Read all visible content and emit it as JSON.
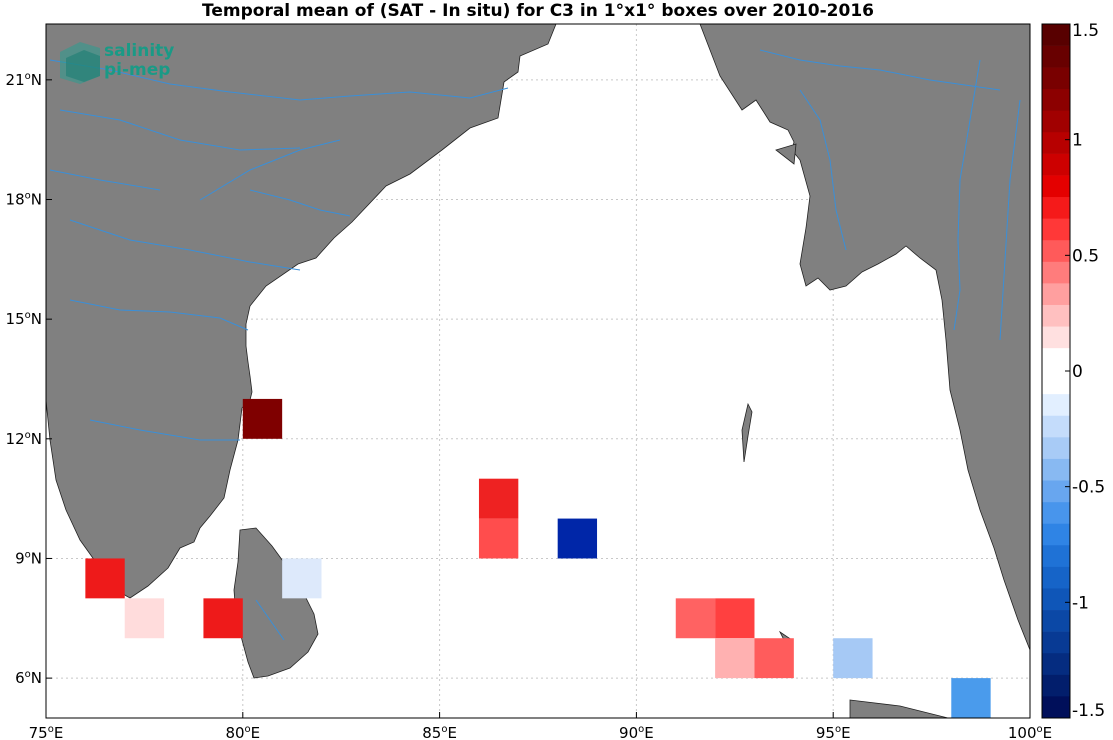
{
  "title": "Temporal mean of (SAT - In situ) for C3 in 1°x1° boxes over 2010-2016",
  "logo": {
    "line1": "salinity",
    "line2": "pi-mep",
    "color": "#1a9a86"
  },
  "colors": {
    "land": "#808080",
    "river": "#3a8fd8",
    "grid": "#c8c8c8"
  },
  "axes": {
    "lon_range": [
      75,
      100
    ],
    "lat_range": [
      5,
      22.4
    ],
    "x_ticks": [
      {
        "deg": "75",
        "hemi": "E"
      },
      {
        "deg": "80",
        "hemi": "E"
      },
      {
        "deg": "85",
        "hemi": "E"
      },
      {
        "deg": "90",
        "hemi": "E"
      },
      {
        "deg": "95",
        "hemi": "E"
      },
      {
        "deg": "100",
        "hemi": "E"
      }
    ],
    "y_ticks": [
      {
        "deg": "6",
        "hemi": "N"
      },
      {
        "deg": "9",
        "hemi": "N"
      },
      {
        "deg": "12",
        "hemi": "N"
      },
      {
        "deg": "15",
        "hemi": "N"
      },
      {
        "deg": "18",
        "hemi": "N"
      },
      {
        "deg": "21",
        "hemi": "N"
      }
    ]
  },
  "colorbar": {
    "range": [
      -1.5,
      1.5
    ],
    "tick_labels": [
      "1.5",
      "1",
      "0.5",
      "0",
      "-0.5",
      "-1",
      "-1.5"
    ],
    "blues_top_to_bottom": [
      "#e2efff",
      "#c4dcfb",
      "#a8cbf6",
      "#88b9f2",
      "#68a6ef",
      "#4895ec",
      "#2f84e5",
      "#1f72d6",
      "#1664c8",
      "#0f56b8",
      "#0b48a6",
      "#083a94",
      "#052c80",
      "#021e6c",
      "#000f5a"
    ],
    "reds_bottom_to_top": [
      "#ffe0e0",
      "#ffc0c0",
      "#ff9f9f",
      "#ff7c7c",
      "#ff5a5a",
      "#ff3838",
      "#f51a1a",
      "#e40000",
      "#cd0000",
      "#b70000",
      "#a10000",
      "#8c0000",
      "#790000",
      "#680000",
      "#580000"
    ]
  },
  "chart_data": {
    "type": "heatmap",
    "title": "Temporal mean of (SAT - In situ) for C3 in 1°x1° boxes over 2010-2016",
    "cell_size_deg": 1,
    "period": "2010-2016",
    "value_range": [
      -1.5,
      1.5
    ],
    "cells": [
      {
        "lon": 80,
        "lat": 12,
        "value": 1.45,
        "color": "#7f0000"
      },
      {
        "lon": 86,
        "lat": 10,
        "value": 0.85,
        "color": "#ee2222"
      },
      {
        "lon": 86,
        "lat": 9,
        "value": 0.6,
        "color": "#ff4d4d"
      },
      {
        "lon": 88,
        "lat": 9,
        "value": -1.3,
        "color": "#0026a8"
      },
      {
        "lon": 76,
        "lat": 8,
        "value": 0.9,
        "color": "#ee1a1a"
      },
      {
        "lon": 77,
        "lat": 7,
        "value": 0.1,
        "color": "#ffdcdc"
      },
      {
        "lon": 79,
        "lat": 7,
        "value": 0.9,
        "color": "#ee1a1a"
      },
      {
        "lon": 81,
        "lat": 8,
        "value": -0.1,
        "color": "#dde9fb"
      },
      {
        "lon": 91,
        "lat": 7,
        "value": 0.5,
        "color": "#ff6262"
      },
      {
        "lon": 92,
        "lat": 7,
        "value": 0.65,
        "color": "#ff4040"
      },
      {
        "lon": 92,
        "lat": 6,
        "value": 0.25,
        "color": "#ffb1b1"
      },
      {
        "lon": 93,
        "lat": 6,
        "value": 0.5,
        "color": "#ff5c5c"
      },
      {
        "lon": 95,
        "lat": 6,
        "value": -0.35,
        "color": "#a6c9f5"
      },
      {
        "lon": 98,
        "lat": 5,
        "value": -0.55,
        "color": "#4a9bec"
      }
    ]
  }
}
